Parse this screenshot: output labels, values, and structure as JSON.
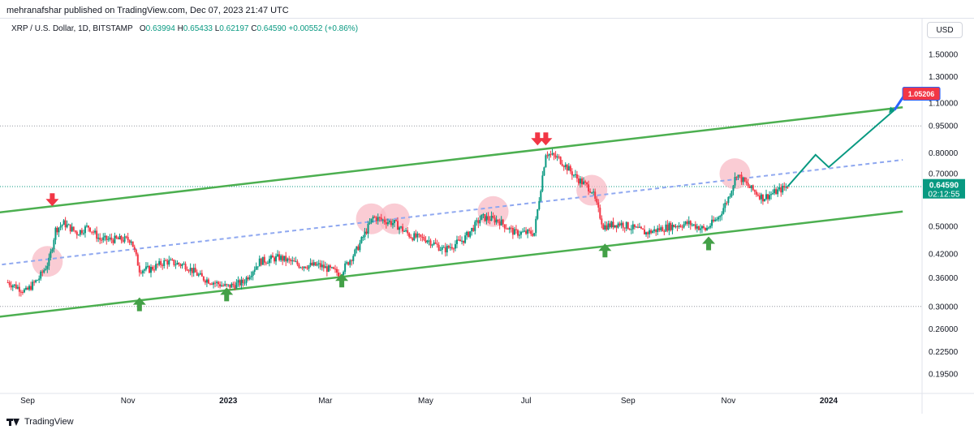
{
  "header": {
    "published_line": "mehranafshar published on TradingView.com, Dec 07, 2023 21:47 UTC"
  },
  "symbol": {
    "name": "XRP / U.S. Dollar, 1D, BITSTAMP",
    "o_label": "O",
    "o_value": "0.63994",
    "h_label": "H",
    "h_value": "0.65433",
    "l_label": "L",
    "l_value": "0.62197",
    "c_label": "C",
    "c_value": "0.64590",
    "change": "+0.00552 (+0.86%)"
  },
  "currency_button": "USD",
  "footer": {
    "brand": "TradingView"
  },
  "colors": {
    "up": "#089981",
    "down": "#f23645",
    "channel": "#4caf50",
    "midline": "#8fa8f0",
    "circle": "#f8bbc6",
    "arrow_down": "#f23645",
    "arrow_up": "#43a047",
    "projection": "#089981",
    "target_label": "#f23645"
  },
  "chart_data": {
    "type": "candlestick",
    "symbol": "XRP / U.S. Dollar",
    "interval": "1D",
    "exchange": "BITSTAMP",
    "price_scale": "log",
    "y_ticks": [
      "1.50000",
      "1.30000",
      "1.10000",
      "0.95000",
      "0.80000",
      "0.70000",
      "0.50000",
      "0.42000",
      "0.36000",
      "0.30000",
      "0.26000",
      "0.22500",
      "0.19500"
    ],
    "x_ticks": [
      "Sep",
      "Nov",
      "2023",
      "Mar",
      "May",
      "Jul",
      "Sep",
      "Nov",
      "2024"
    ],
    "last_price": "0.64590",
    "countdown": "02:12:55",
    "target_label": "1.05206",
    "price_path": [
      [
        "2022-08-20",
        0.35
      ],
      [
        "2022-08-31",
        0.33
      ],
      [
        "2022-09-08",
        0.36
      ],
      [
        "2022-09-14",
        0.4
      ],
      [
        "2022-09-18",
        0.49
      ],
      [
        "2022-09-23",
        0.51
      ],
      [
        "2022-10-01",
        0.48
      ],
      [
        "2022-10-08",
        0.5
      ],
      [
        "2022-10-15",
        0.46
      ],
      [
        "2022-10-25",
        0.46
      ],
      [
        "2022-11-03",
        0.46
      ],
      [
        "2022-11-08",
        0.38
      ],
      [
        "2022-11-14",
        0.38
      ],
      [
        "2022-11-24",
        0.4
      ],
      [
        "2022-12-06",
        0.39
      ],
      [
        "2022-12-16",
        0.36
      ],
      [
        "2022-12-31",
        0.34
      ],
      [
        "2023-01-10",
        0.35
      ],
      [
        "2023-01-20",
        0.4
      ],
      [
        "2023-02-01",
        0.41
      ],
      [
        "2023-02-14",
        0.39
      ],
      [
        "2023-02-25",
        0.39
      ],
      [
        "2023-03-10",
        0.37
      ],
      [
        "2023-03-20",
        0.43
      ],
      [
        "2023-03-30",
        0.53
      ],
      [
        "2023-04-12",
        0.51
      ],
      [
        "2023-04-22",
        0.47
      ],
      [
        "2023-05-02",
        0.46
      ],
      [
        "2023-05-12",
        0.43
      ],
      [
        "2023-05-24",
        0.46
      ],
      [
        "2023-06-04",
        0.53
      ],
      [
        "2023-06-14",
        0.52
      ],
      [
        "2023-06-24",
        0.48
      ],
      [
        "2023-07-06",
        0.48
      ],
      [
        "2023-07-13",
        0.8
      ],
      [
        "2023-07-21",
        0.77
      ],
      [
        "2023-08-01",
        0.68
      ],
      [
        "2023-08-10",
        0.63
      ],
      [
        "2023-08-17",
        0.5
      ],
      [
        "2023-08-27",
        0.51
      ],
      [
        "2023-09-12",
        0.48
      ],
      [
        "2023-09-26",
        0.5
      ],
      [
        "2023-10-08",
        0.51
      ],
      [
        "2023-10-18",
        0.49
      ],
      [
        "2023-10-26",
        0.53
      ],
      [
        "2023-11-01",
        0.6
      ],
      [
        "2023-11-06",
        0.7
      ],
      [
        "2023-11-14",
        0.64
      ],
      [
        "2023-11-22",
        0.6
      ],
      [
        "2023-12-07",
        0.6459
      ]
    ],
    "annotations": {
      "channel_upper": [
        [
          "2022-08-12",
          0.545
        ],
        [
          "2024-02-15",
          1.07
        ]
      ],
      "channel_lower": [
        [
          "2022-08-12",
          0.28
        ],
        [
          "2024-02-15",
          0.55
        ]
      ],
      "channel_mid": [
        [
          "2022-08-12",
          0.39
        ],
        [
          "2024-02-15",
          0.765
        ]
      ],
      "projection": [
        [
          "2023-12-07",
          0.645
        ],
        [
          "2023-12-24",
          0.79
        ],
        [
          "2024-01-01",
          0.73
        ],
        [
          "2024-02-10",
          1.052
        ]
      ],
      "circles": [
        [
          "2022-09-13",
          0.4
        ],
        [
          "2023-03-29",
          0.525
        ],
        [
          "2023-04-12",
          0.525
        ],
        [
          "2023-06-11",
          0.55
        ],
        [
          "2023-08-10",
          0.63
        ],
        [
          "2023-11-05",
          0.7
        ]
      ],
      "down_arrows": [
        [
          "2022-09-16",
          0.59
        ],
        [
          "2023-07-08",
          0.87
        ],
        [
          "2023-07-13",
          0.87
        ]
      ],
      "up_arrows": [
        [
          "2022-11-08",
          0.305
        ],
        [
          "2022-12-31",
          0.325
        ],
        [
          "2023-03-11",
          0.355
        ],
        [
          "2023-08-18",
          0.43
        ],
        [
          "2023-10-20",
          0.45
        ]
      ],
      "dotted_levels": [
        0.95,
        0.645,
        0.3
      ]
    }
  }
}
